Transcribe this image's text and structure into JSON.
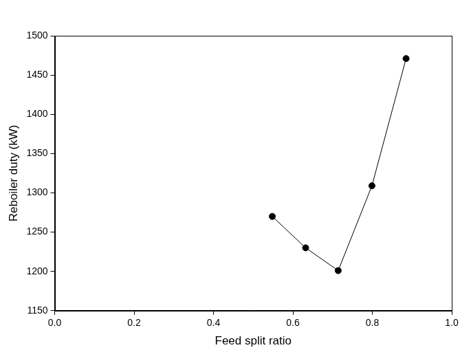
{
  "chart_data": {
    "type": "line",
    "x": [
      0.548,
      0.632,
      0.714,
      0.799,
      0.885
    ],
    "values": [
      1270,
      1230,
      1201,
      1309,
      1471
    ],
    "color": "#000000",
    "marker": "circle",
    "xlabel": "Feed split ratio",
    "ylabel": "Reboiler duty (kW)",
    "xlim": [
      0,
      1
    ],
    "xticks": [
      {
        "value": 0,
        "label": "0.0"
      },
      0.2,
      0.4,
      0.6,
      0.8,
      {
        "value": 1,
        "label": "1.0"
      }
    ],
    "ylim": [
      1150,
      1500
    ],
    "yticks": [
      1150,
      1200,
      1250,
      1300,
      1350,
      1400,
      1450,
      1500
    ],
    "grid": false
  }
}
